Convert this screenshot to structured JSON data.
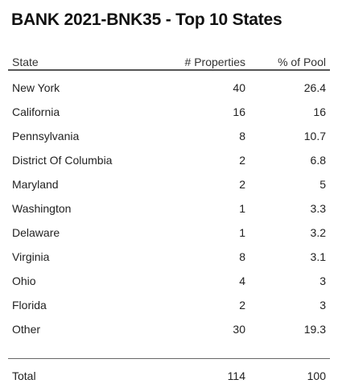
{
  "title": "BANK 2021-BNK35 - Top 10 States",
  "columns": [
    "State",
    "# Properties",
    "% of Pool"
  ],
  "chart_data": {
    "type": "table",
    "title": "BANK 2021-BNK35 - Top 10 States",
    "columns": [
      "State",
      "# Properties",
      "% of Pool"
    ],
    "rows": [
      {
        "state": "New York",
        "properties": "40",
        "pct": "26.4"
      },
      {
        "state": "California",
        "properties": "16",
        "pct": "16"
      },
      {
        "state": "Pennsylvania",
        "properties": "8",
        "pct": "10.7"
      },
      {
        "state": "District Of Columbia",
        "properties": "2",
        "pct": "6.8"
      },
      {
        "state": "Maryland",
        "properties": "2",
        "pct": "5"
      },
      {
        "state": "Washington",
        "properties": "1",
        "pct": "3.3"
      },
      {
        "state": "Delaware",
        "properties": "1",
        "pct": "3.2"
      },
      {
        "state": "Virginia",
        "properties": "8",
        "pct": "3.1"
      },
      {
        "state": "Ohio",
        "properties": "4",
        "pct": "3"
      },
      {
        "state": "Florida",
        "properties": "2",
        "pct": "3"
      },
      {
        "state": "Other",
        "properties": "30",
        "pct": "19.3"
      }
    ],
    "total": {
      "state": "Total",
      "properties": "114",
      "pct": "100"
    }
  }
}
